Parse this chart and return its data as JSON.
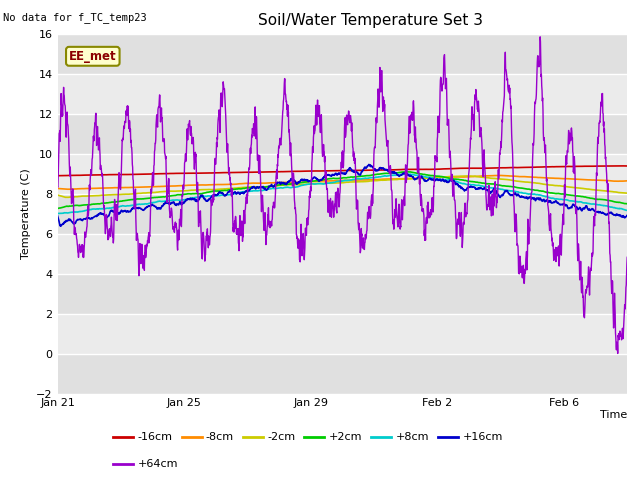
{
  "title": "Soil/Water Temperature Set 3",
  "xlabel": "Time",
  "ylabel": "Temperature (C)",
  "ylim": [
    -2,
    16
  ],
  "annotation_text": "No data for f_TC_temp23",
  "legend_box_text": "EE_met",
  "fig_bg": "#ffffff",
  "plot_bg": "#e8e8e8",
  "series": {
    "-16cm": {
      "color": "#cc0000",
      "lw": 1.2
    },
    "-8cm": {
      "color": "#ff8c00",
      "lw": 1.2
    },
    "-2cm": {
      "color": "#cccc00",
      "lw": 1.2
    },
    "+2cm": {
      "color": "#00cc00",
      "lw": 1.2
    },
    "+8cm": {
      "color": "#00cccc",
      "lw": 1.2
    },
    "+16cm": {
      "color": "#0000cc",
      "lw": 1.2
    },
    "+64cm": {
      "color": "#9900cc",
      "lw": 1.0
    }
  },
  "xtick_labels": [
    "Jan 21",
    "Jan 25",
    "Jan 29",
    "Feb 2",
    "Feb 6"
  ],
  "xtick_positions": [
    0,
    4,
    8,
    12,
    16
  ],
  "total_days": 18,
  "legend_order": [
    "-16cm",
    "-8cm",
    "-2cm",
    "+2cm",
    "+8cm",
    "+16cm",
    "+64cm"
  ]
}
